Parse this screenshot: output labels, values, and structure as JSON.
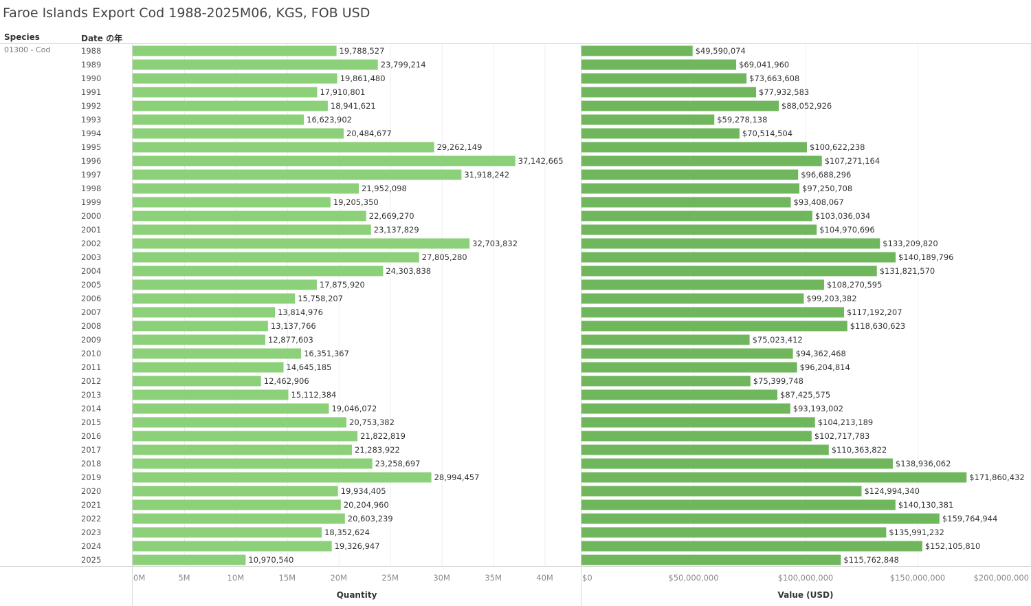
{
  "title": "Faroe Islands Export Cod 1988-2025M06, KGS, FOB USD",
  "headers": {
    "species": "Species",
    "date": "Date の年"
  },
  "species_value": "01300 - Cod",
  "colors": {
    "quantity_bar": "#8dd07a",
    "value_bar": "#6fb65d",
    "grid": "#eeeeee",
    "border": "#d8d8d8"
  },
  "chart_data": [
    {
      "type": "bar",
      "orientation": "horizontal",
      "xlabel": "Quantity",
      "xlim": [
        0,
        43500000
      ],
      "ticks": [
        0,
        5000000,
        10000000,
        15000000,
        20000000,
        25000000,
        30000000,
        35000000,
        40000000
      ],
      "tick_labels": [
        "0M",
        "5M",
        "10M",
        "15M",
        "20M",
        "25M",
        "30M",
        "35M",
        "40M"
      ],
      "categories": [
        "1988",
        "1989",
        "1990",
        "1991",
        "1992",
        "1993",
        "1994",
        "1995",
        "1996",
        "1997",
        "1998",
        "1999",
        "2000",
        "2001",
        "2002",
        "2003",
        "2004",
        "2005",
        "2006",
        "2007",
        "2008",
        "2009",
        "2010",
        "2011",
        "2012",
        "2013",
        "2014",
        "2015",
        "2016",
        "2017",
        "2018",
        "2019",
        "2020",
        "2021",
        "2022",
        "2023",
        "2024",
        "2025"
      ],
      "values": [
        19788527,
        23799214,
        19861480,
        17910801,
        18941621,
        16623902,
        20484677,
        29262149,
        37142665,
        31918242,
        21952098,
        19205350,
        22669270,
        23137829,
        32703832,
        27805280,
        24303838,
        17875920,
        15758207,
        13814976,
        13137766,
        12877603,
        16351367,
        14645185,
        12462906,
        15112384,
        19046072,
        20753382,
        21822819,
        21283922,
        23258697,
        28994457,
        19934405,
        20204960,
        20603239,
        18352624,
        19326947,
        10970540
      ],
      "data_labels": [
        "19,788,527",
        "23,799,214",
        "19,861,480",
        "17,910,801",
        "18,941,621",
        "16,623,902",
        "20,484,677",
        "29,262,149",
        "37,142,665",
        "31,918,242",
        "21,952,098",
        "19,205,350",
        "22,669,270",
        "23,137,829",
        "32,703,832",
        "27,805,280",
        "24,303,838",
        "17,875,920",
        "15,758,207",
        "13,814,976",
        "13,137,766",
        "12,877,603",
        "16,351,367",
        "14,645,185",
        "12,462,906",
        "15,112,384",
        "19,046,072",
        "20,753,382",
        "21,822,819",
        "21,283,922",
        "23,258,697",
        "28,994,457",
        "19,934,405",
        "20,204,960",
        "20,603,239",
        "18,352,624",
        "19,326,947",
        "10,970,540"
      ]
    },
    {
      "type": "bar",
      "orientation": "horizontal",
      "xlabel": "Value (USD)",
      "xlim": [
        0,
        200000000
      ],
      "ticks": [
        0,
        50000000,
        100000000,
        150000000,
        200000000
      ],
      "tick_labels": [
        "$0",
        "$50,000,000",
        "$100,000,000",
        "$150,000,000",
        "$200,000,000"
      ],
      "categories": [
        "1988",
        "1989",
        "1990",
        "1991",
        "1992",
        "1993",
        "1994",
        "1995",
        "1996",
        "1997",
        "1998",
        "1999",
        "2000",
        "2001",
        "2002",
        "2003",
        "2004",
        "2005",
        "2006",
        "2007",
        "2008",
        "2009",
        "2010",
        "2011",
        "2012",
        "2013",
        "2014",
        "2015",
        "2016",
        "2017",
        "2018",
        "2019",
        "2020",
        "2021",
        "2022",
        "2023",
        "2024",
        "2025"
      ],
      "values": [
        49590074,
        69041960,
        73663608,
        77932583,
        88052926,
        59278138,
        70514504,
        100622238,
        107271164,
        96688296,
        97250708,
        93408067,
        103036034,
        104970696,
        133209820,
        140189796,
        131821570,
        108270595,
        99203382,
        117192207,
        118630623,
        75023412,
        94362468,
        96204814,
        75399748,
        87425575,
        93193002,
        104213189,
        102717783,
        110363822,
        138936062,
        171860432,
        124994340,
        140130381,
        159764944,
        135991232,
        152105810,
        115762848
      ],
      "data_labels": [
        "$49,590,074",
        "$69,041,960",
        "$73,663,608",
        "$77,932,583",
        "$88,052,926",
        "$59,278,138",
        "$70,514,504",
        "$100,622,238",
        "$107,271,164",
        "$96,688,296",
        "$97,250,708",
        "$93,408,067",
        "$103,036,034",
        "$104,970,696",
        "$133,209,820",
        "$140,189,796",
        "$131,821,570",
        "$108,270,595",
        "$99,203,382",
        "$117,192,207",
        "$118,630,623",
        "$75,023,412",
        "$94,362,468",
        "$96,204,814",
        "$75,399,748",
        "$87,425,575",
        "$93,193,002",
        "$104,213,189",
        "$102,717,783",
        "$110,363,822",
        "$138,936,062",
        "$171,860,432",
        "$124,994,340",
        "$140,130,381",
        "$159,764,944",
        "$135,991,232",
        "$152,105,810",
        "$115,762,848"
      ]
    }
  ]
}
